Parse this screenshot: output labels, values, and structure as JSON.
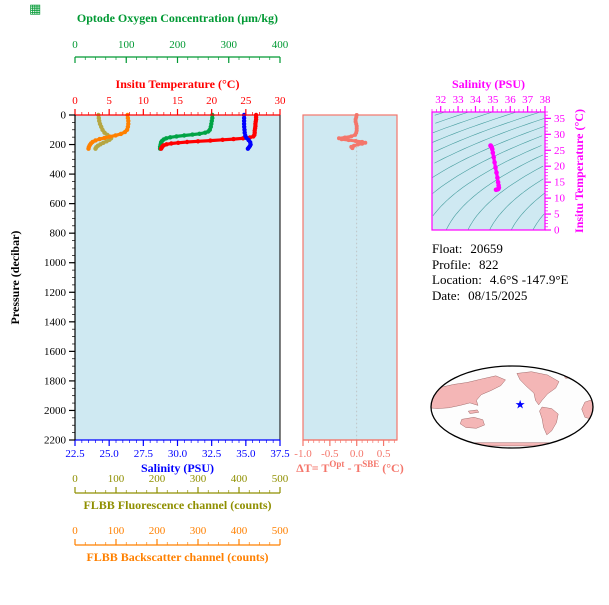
{
  "figure": {
    "bg_color": "#ffffff"
  },
  "corner_icon": {
    "name": "grid-glyph",
    "color": "#009933"
  },
  "float_info": {
    "lines": [
      {
        "label": "Float:",
        "value": "20659"
      },
      {
        "label": "Profile:",
        "value": "822"
      },
      {
        "label": "Location:",
        "value": "4.6°S -147.9°E"
      },
      {
        "label": "Date:",
        "value": "08/15/2025"
      }
    ]
  },
  "map": {
    "outline_color": "#000000",
    "ocean_color": "#fdfdfd",
    "land_color": "#f4b6b6",
    "star_icon": "star",
    "star_color": "#0000ff",
    "star_u": 0.1,
    "star_v": -0.06
  },
  "chart_data": [
    {
      "id": "pressure_profiles",
      "type": "line",
      "plot_bg": "#cfe9f2",
      "y_axis": {
        "label": "Pressure (decibar)",
        "lim": [
          0,
          2200
        ],
        "ticks": [
          0,
          200,
          400,
          600,
          800,
          1000,
          1200,
          1400,
          1600,
          1800,
          2000,
          2200
        ],
        "minor_step": 50,
        "color": "#000000"
      },
      "x_axes": [
        {
          "id": "oxygen",
          "slot": "top_outer",
          "label": "Optode Oxygen Concentration (μm/kg)",
          "lim": [
            0,
            400
          ],
          "ticks": [
            0,
            100,
            200,
            300,
            400
          ],
          "minor_step": 20,
          "color": "#009933"
        },
        {
          "id": "temperature",
          "slot": "top",
          "label": "Insitu Temperature (°C)",
          "lim": [
            0,
            30
          ],
          "ticks": [
            0,
            5,
            10,
            15,
            20,
            25,
            30
          ],
          "minor_step": 1,
          "color": "#ff0000"
        },
        {
          "id": "salinity",
          "slot": "bottom",
          "label": "Salinity (PSU)",
          "lim": [
            22.5,
            37.5
          ],
          "ticks": [
            22.5,
            25.0,
            27.5,
            30.0,
            32.5,
            35.0,
            37.5
          ],
          "tick_labels": [
            "22.5",
            "25.0",
            "27.5",
            "30.0",
            "32.5",
            "35.0",
            "37.5"
          ],
          "minor_step": 0.5,
          "color": "#0000ff"
        },
        {
          "id": "fluorescence",
          "slot": "bottom_outer_1",
          "label": "FLBB Fluorescence channel (counts)",
          "lim": [
            0,
            500
          ],
          "ticks": [
            0,
            100,
            200,
            300,
            400,
            500
          ],
          "minor_step": 25,
          "color": "#8f8f00"
        },
        {
          "id": "backscatter",
          "slot": "bottom_outer_2",
          "label": "FLBB Backscatter channel (counts)",
          "lim": [
            0,
            500
          ],
          "ticks": [
            0,
            100,
            200,
            300,
            400,
            500
          ],
          "minor_step": 25,
          "color": "#ff8000"
        }
      ],
      "series": [
        {
          "id": "oxygen_um_kg",
          "axis": "oxygen",
          "color": "#00a345",
          "points_pressure_value": [
            [
              0,
              268
            ],
            [
              20,
              268
            ],
            [
              40,
              267
            ],
            [
              60,
              266
            ],
            [
              80,
              265
            ],
            [
              100,
              263
            ],
            [
              112,
              260
            ],
            [
              120,
              254
            ],
            [
              127,
              243
            ],
            [
              133,
              229
            ],
            [
              139,
              213
            ],
            [
              145,
              198
            ],
            [
              151,
              186
            ],
            [
              158,
              178
            ],
            [
              166,
              173
            ],
            [
              175,
              170
            ],
            [
              185,
              168
            ],
            [
              200,
              167
            ],
            [
              215,
              166
            ],
            [
              228,
              166
            ]
          ]
        },
        {
          "id": "insitu_temperature_c",
          "axis": "temperature",
          "color": "#ff0000",
          "points_pressure_value": [
            [
              0,
              26.5
            ],
            [
              15,
              26.5
            ],
            [
              30,
              26.5
            ],
            [
              45,
              26.45
            ],
            [
              60,
              26.4
            ],
            [
              75,
              26.4
            ],
            [
              90,
              26.35
            ],
            [
              105,
              26.3
            ],
            [
              120,
              26.3
            ],
            [
              135,
              26.25
            ],
            [
              145,
              26.1
            ],
            [
              152,
              25.6
            ],
            [
              158,
              24.6
            ],
            [
              163,
              23.2
            ],
            [
              168,
              21.6
            ],
            [
              173,
              19.8
            ],
            [
              178,
              18.0
            ],
            [
              183,
              16.4
            ],
            [
              188,
              15.1
            ],
            [
              193,
              14.1
            ],
            [
              198,
              13.4
            ],
            [
              205,
              13.0
            ],
            [
              212,
              12.8
            ],
            [
              220,
              12.7
            ],
            [
              228,
              12.6
            ]
          ]
        },
        {
          "id": "salinity_psu",
          "axis": "salinity",
          "color": "#0000ff",
          "points_pressure_value": [
            [
              0,
              34.87
            ],
            [
              20,
              34.87
            ],
            [
              40,
              34.87
            ],
            [
              60,
              34.87
            ],
            [
              80,
              34.88
            ],
            [
              100,
              34.9
            ],
            [
              120,
              34.92
            ],
            [
              140,
              34.96
            ],
            [
              155,
              35.05
            ],
            [
              170,
              35.2
            ],
            [
              185,
              35.32
            ],
            [
              200,
              35.35
            ],
            [
              210,
              35.3
            ],
            [
              220,
              35.22
            ],
            [
              228,
              35.15
            ]
          ]
        },
        {
          "id": "flbb_fluorescence_counts",
          "axis": "fluorescence",
          "color": "#b5a642",
          "points_pressure_value": [
            [
              0,
              57
            ],
            [
              20,
              58
            ],
            [
              40,
              59
            ],
            [
              60,
              61
            ],
            [
              80,
              64
            ],
            [
              100,
              67
            ],
            [
              120,
              72
            ],
            [
              135,
              79
            ],
            [
              148,
              86
            ],
            [
              158,
              88
            ],
            [
              168,
              84
            ],
            [
              178,
              77
            ],
            [
              188,
              69
            ],
            [
              198,
              62
            ],
            [
              208,
              56
            ],
            [
              218,
              52
            ],
            [
              228,
              50
            ]
          ]
        },
        {
          "id": "flbb_backscatter_counts",
          "axis": "backscatter",
          "color": "#ff8000",
          "points_pressure_value": [
            [
              0,
              128
            ],
            [
              20,
              129
            ],
            [
              40,
              130
            ],
            [
              60,
              130
            ],
            [
              80,
              129
            ],
            [
              100,
              127
            ],
            [
              115,
              122
            ],
            [
              128,
              112
            ],
            [
              138,
              99
            ],
            [
              147,
              85
            ],
            [
              155,
              72
            ],
            [
              163,
              60
            ],
            [
              172,
              50
            ],
            [
              182,
              43
            ],
            [
              192,
              39
            ],
            [
              204,
              36
            ],
            [
              216,
              34
            ],
            [
              228,
              33
            ]
          ]
        }
      ]
    },
    {
      "id": "temperature_difference",
      "type": "line",
      "plot_bg": "#cfe9f2",
      "frame_color": "#f4766b",
      "x_axis": {
        "id": "delta_t",
        "label_parts": {
          "pre": "ΔT= T",
          "sup1": "Opt",
          "mid": " - T",
          "sup2": "SBE",
          "post": " (°C)"
        },
        "lim": [
          -1.0,
          0.75
        ],
        "ticks": [
          -1.0,
          -0.5,
          0.0,
          0.5
        ],
        "tick_labels": [
          "-1.0",
          "-0.5",
          "0.0",
          "0.5"
        ],
        "minor_step": 0.1,
        "color": "#f4766b"
      },
      "zero_reference_line": true,
      "series": [
        {
          "id": "delta_t_c",
          "color": "#f4766b",
          "points_pressure_value": [
            [
              0,
              0.0
            ],
            [
              15,
              -0.01
            ],
            [
              30,
              -0.02
            ],
            [
              45,
              -0.02
            ],
            [
              60,
              -0.01
            ],
            [
              75,
              0.0
            ],
            [
              90,
              0.0
            ],
            [
              105,
              0.0
            ],
            [
              120,
              -0.01
            ],
            [
              135,
              -0.03
            ],
            [
              145,
              -0.1
            ],
            [
              152,
              -0.22
            ],
            [
              158,
              -0.33
            ],
            [
              164,
              -0.28
            ],
            [
              170,
              -0.15
            ],
            [
              176,
              -0.02
            ],
            [
              182,
              0.1
            ],
            [
              188,
              0.16
            ],
            [
              194,
              0.1
            ],
            [
              200,
              0.02
            ],
            [
              208,
              -0.05
            ],
            [
              216,
              -0.1
            ],
            [
              224,
              -0.08
            ]
          ]
        }
      ]
    },
    {
      "id": "ts_diagram",
      "type": "scatter",
      "plot_bg": "#cfe9f2",
      "frame_color": "#ff00ff",
      "x_axis": {
        "id": "ts_salinity",
        "label": "Salinity (PSU)",
        "lim": [
          31.5,
          38
        ],
        "ticks": [
          32,
          33,
          34,
          35,
          36,
          37,
          38
        ],
        "minor_step": 0.25,
        "color": "#ff00ff"
      },
      "y_axis": {
        "id": "ts_temperature",
        "label": "Insitu Temperature (°C)",
        "lim": [
          0,
          37
        ],
        "ticks": [
          0,
          5,
          10,
          15,
          20,
          25,
          30,
          35
        ],
        "minor_step": 1,
        "color": "#ff00ff"
      },
      "isopycnal_contours": {
        "color": "#2f9090",
        "sigma_t_values": [
          17,
          18,
          19,
          20,
          21,
          22,
          23,
          24,
          25,
          26,
          27,
          28,
          29,
          30
        ]
      },
      "series": [
        {
          "id": "ts_profile",
          "color": "#ff00ff",
          "points_salinity_temperature": [
            [
              34.87,
              26.5
            ],
            [
              34.87,
              26.4
            ],
            [
              34.88,
              26.3
            ],
            [
              34.9,
              26.2
            ],
            [
              34.93,
              26.0
            ],
            [
              34.97,
              25.3
            ],
            [
              35.0,
              24.2
            ],
            [
              35.05,
              22.8
            ],
            [
              35.1,
              21.2
            ],
            [
              35.15,
              19.6
            ],
            [
              35.21,
              18.0
            ],
            [
              35.26,
              16.4
            ],
            [
              35.3,
              15.0
            ],
            [
              35.33,
              14.0
            ],
            [
              35.35,
              13.3
            ],
            [
              35.32,
              12.9
            ],
            [
              35.25,
              12.7
            ],
            [
              35.18,
              12.6
            ]
          ]
        }
      ]
    }
  ]
}
